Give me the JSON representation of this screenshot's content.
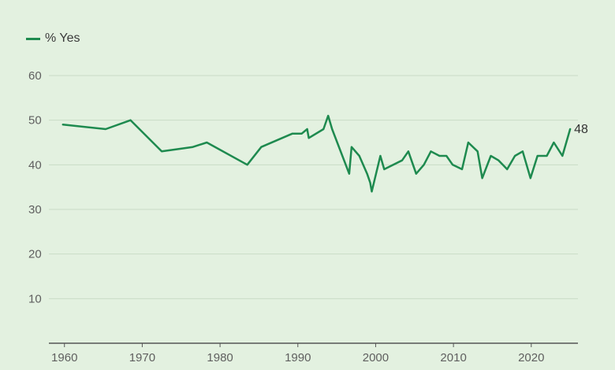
{
  "chart_data": {
    "type": "line",
    "title": "",
    "xlabel": "",
    "ylabel": "",
    "xlim": [
      1958,
      2026
    ],
    "ylim": [
      0,
      60
    ],
    "x_ticks": [
      1960,
      1970,
      1980,
      1990,
      2000,
      2010,
      2020
    ],
    "y_ticks": [
      10,
      20,
      30,
      40,
      50,
      60
    ],
    "grid": true,
    "legend_position": "top-left",
    "series": [
      {
        "name": "% Yes",
        "color": "#1e8a4f",
        "points": [
          [
            1959.8,
            49
          ],
          [
            1965.3,
            48
          ],
          [
            1968.5,
            50
          ],
          [
            1972.5,
            43
          ],
          [
            1976.5,
            44
          ],
          [
            1978.3,
            45
          ],
          [
            1983.5,
            40
          ],
          [
            1985.3,
            44
          ],
          [
            1989.3,
            47
          ],
          [
            1990.5,
            47
          ],
          [
            1991.2,
            48
          ],
          [
            1991.4,
            46
          ],
          [
            1993.3,
            48
          ],
          [
            1993.9,
            51
          ],
          [
            1994.4,
            48
          ],
          [
            1996.6,
            38
          ],
          [
            1996.9,
            44
          ],
          [
            1997.9,
            42
          ],
          [
            1998.9,
            38
          ],
          [
            1999.3,
            36
          ],
          [
            1999.5,
            34
          ],
          [
            2000.6,
            42
          ],
          [
            2001.1,
            39
          ],
          [
            2003.4,
            41
          ],
          [
            2004.2,
            43
          ],
          [
            2005.2,
            38
          ],
          [
            2006.2,
            40
          ],
          [
            2007.1,
            43
          ],
          [
            2008.2,
            42
          ],
          [
            2009.1,
            42
          ],
          [
            2009.9,
            40
          ],
          [
            2011.1,
            39
          ],
          [
            2011.9,
            45
          ],
          [
            2013.1,
            43
          ],
          [
            2013.7,
            37
          ],
          [
            2014.8,
            42
          ],
          [
            2015.8,
            41
          ],
          [
            2016.9,
            39
          ],
          [
            2017.9,
            42
          ],
          [
            2018.9,
            43
          ],
          [
            2019.9,
            37
          ],
          [
            2020.8,
            42
          ],
          [
            2022.0,
            42
          ],
          [
            2022.9,
            45
          ],
          [
            2024.0,
            42
          ],
          [
            2025.0,
            48
          ]
        ],
        "end_label": "48"
      }
    ]
  }
}
